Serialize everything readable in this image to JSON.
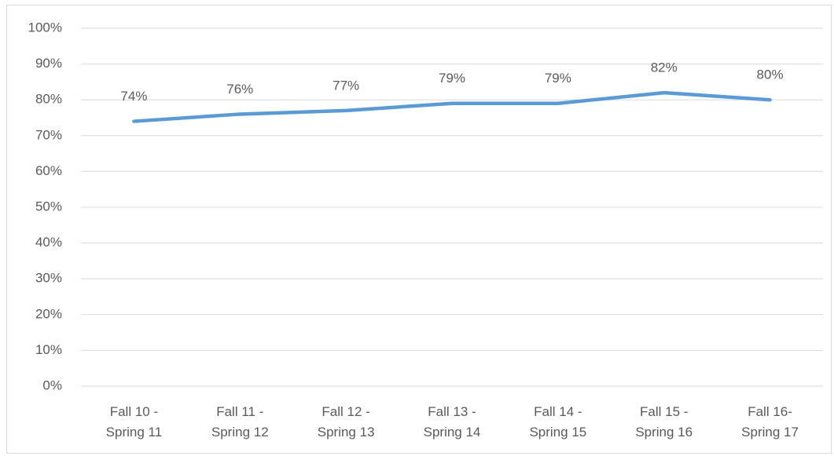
{
  "chart_data": {
    "type": "line",
    "categories": [
      "Fall 10 - Spring 11",
      "Fall 11 - Spring 12",
      "Fall 12 - Spring 13",
      "Fall 13 - Spring 14",
      "Fall 14 - Spring 15",
      "Fall 15 - Spring 16",
      "Fall 16-Spring 17"
    ],
    "series": [
      {
        "color": "#5b9bd5",
        "values": [
          74,
          76,
          77,
          79,
          79,
          82,
          80
        ],
        "value_labels": [
          "74%",
          "76%",
          "77%",
          "79%",
          "79%",
          "82%",
          "80%"
        ]
      }
    ],
    "ylim": [
      0,
      100
    ],
    "yticks": [
      {
        "value": 0,
        "label": "0%"
      },
      {
        "value": 10,
        "label": "10%"
      },
      {
        "value": 20,
        "label": "20%"
      },
      {
        "value": 30,
        "label": "30%"
      },
      {
        "value": 40,
        "label": "40%"
      },
      {
        "value": 50,
        "label": "50%"
      },
      {
        "value": 60,
        "label": "60%"
      },
      {
        "value": 70,
        "label": "70%"
      },
      {
        "value": 80,
        "label": "80%"
      },
      {
        "value": 90,
        "label": "90%"
      },
      {
        "value": 100,
        "label": "100%"
      }
    ],
    "grid": true
  }
}
